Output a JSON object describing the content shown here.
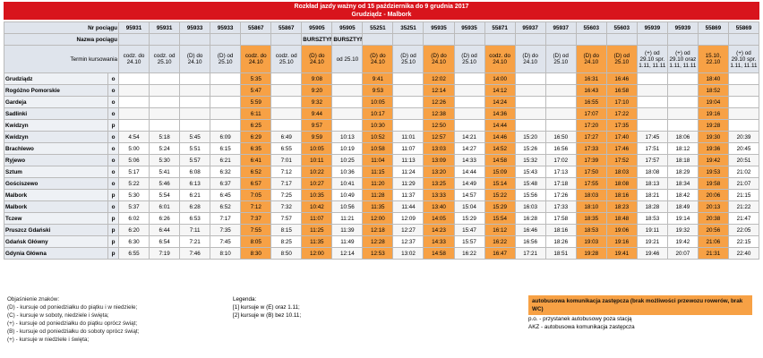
{
  "header": {
    "title": "Rozkład jazdy ważny od 15 października do 9 grudnia 2017",
    "subtitle": "Grudziądz - Malbork"
  },
  "labels": {
    "number": "Nr pociągu",
    "name": "Nazwa pociągu",
    "days": "Termin kursowania"
  },
  "bus_color": "#f7a145",
  "trains": [
    {
      "number": "95931",
      "name": null,
      "days": "codz. do 24.10",
      "bus": false
    },
    {
      "number": "95931",
      "name": null,
      "days": "codz. od 25.10",
      "bus": false
    },
    {
      "number": "95933",
      "name": null,
      "days": "(D) do 24.10",
      "bus": false
    },
    {
      "number": "95933",
      "name": null,
      "days": "(D) od 25.10",
      "bus": false
    },
    {
      "number": "55867",
      "name": null,
      "days": "codz. do 24.10",
      "bus": true
    },
    {
      "number": "55867",
      "name": null,
      "days": "codz. od 25.10",
      "bus": false
    },
    {
      "number": "95905",
      "name": "BURSZTYN",
      "days": "(D) do 24.10",
      "bus": true
    },
    {
      "number": "95905",
      "name": "BURSZTYN",
      "days": "od 25.10",
      "bus": false
    },
    {
      "number": "55251",
      "name": null,
      "days": "(D) do 24.10",
      "bus": true
    },
    {
      "number": "35251",
      "name": null,
      "days": "(D) od 25.10",
      "bus": false
    },
    {
      "number": "95935",
      "name": null,
      "days": "(D) do 24.10",
      "bus": true
    },
    {
      "number": "95935",
      "name": null,
      "days": "(D) od 25.10",
      "bus": false
    },
    {
      "number": "55871",
      "name": null,
      "days": "codz. do 24.10",
      "bus": true
    },
    {
      "number": "95937",
      "name": null,
      "days": "(D) do 24.10",
      "bus": false
    },
    {
      "number": "95937",
      "name": null,
      "days": "(D) od 25.10",
      "bus": false
    },
    {
      "number": "55603",
      "name": null,
      "days": "(D) do 24.10",
      "bus": true
    },
    {
      "number": "55603",
      "name": null,
      "days": "(D) od 25.10",
      "bus": true
    },
    {
      "number": "95939",
      "name": null,
      "days": "(+) od 29.10 spr. 1.11, 11.11",
      "bus": false
    },
    {
      "number": "95939",
      "name": null,
      "days": "(+) od 29.10 oraz 1.11, 11.11",
      "bus": false
    },
    {
      "number": "55869",
      "name": null,
      "days": "15.10, 22.10",
      "bus": true
    },
    {
      "number": "55869",
      "name": null,
      "days": "(+) od 29.10 spr. 1.11, 11.11",
      "bus": false
    }
  ],
  "rows": [
    {
      "station": "Grudziądz",
      "type": "o",
      "times": [
        null,
        null,
        null,
        null,
        "5:35",
        null,
        "9:08",
        null,
        "9:41",
        null,
        "12:02",
        null,
        "14:00",
        null,
        null,
        "16:31",
        "16:46",
        null,
        null,
        "18:40",
        null
      ]
    },
    {
      "station": "Rogóżno Pomorskie",
      "type": "o",
      "times": [
        null,
        null,
        null,
        null,
        "5:47",
        null,
        "9:20",
        null,
        "9:53",
        null,
        "12:14",
        null,
        "14:12",
        null,
        null,
        "16:43",
        "16:58",
        null,
        null,
        "18:52",
        null
      ]
    },
    {
      "station": "Gardeja",
      "type": "o",
      "times": [
        null,
        null,
        null,
        null,
        "5:59",
        null,
        "9:32",
        null,
        "10:05",
        null,
        "12:26",
        null,
        "14:24",
        null,
        null,
        "16:55",
        "17:10",
        null,
        null,
        "19:04",
        null
      ]
    },
    {
      "station": "Sadlinki",
      "type": "o",
      "times": [
        null,
        null,
        null,
        null,
        "6:11",
        null,
        "9:44",
        null,
        "10:17",
        null,
        "12:38",
        null,
        "14:36",
        null,
        null,
        "17:07",
        "17:22",
        null,
        null,
        "19:16",
        null
      ]
    },
    {
      "station": "Kwidzyn",
      "type": "p",
      "times": [
        null,
        null,
        null,
        null,
        "6:25",
        null,
        "9:57",
        null,
        "10:30",
        null,
        "12:50",
        null,
        "14:44",
        null,
        null,
        "17:20",
        "17:35",
        null,
        null,
        "19:28",
        null
      ]
    },
    {
      "station": "Kwidzyn",
      "type": "o",
      "times": [
        "4:54",
        "5:18",
        "5:45",
        "6:09",
        "6:29",
        "6:49",
        "9:59",
        "10:13",
        "10:52",
        "11:01",
        "12:57",
        "14:21",
        "14:46",
        "15:20",
        "16:50",
        "17:27",
        "17:40",
        "17:45",
        "18:06",
        "19:30",
        "20:39"
      ]
    },
    {
      "station": "Brachlewo",
      "type": "o",
      "times": [
        "5:00",
        "5:24",
        "5:51",
        "6:15",
        "6:35",
        "6:55",
        "10:05",
        "10:19",
        "10:58",
        "11:07",
        "13:03",
        "14:27",
        "14:52",
        "15:26",
        "16:56",
        "17:33",
        "17:46",
        "17:51",
        "18:12",
        "19:36",
        "20:45"
      ]
    },
    {
      "station": "Ryjewo",
      "type": "o",
      "times": [
        "5:06",
        "5:30",
        "5:57",
        "6:21",
        "6:41",
        "7:01",
        "10:11",
        "10:25",
        "11:04",
        "11:13",
        "13:09",
        "14:33",
        "14:58",
        "15:32",
        "17:02",
        "17:39",
        "17:52",
        "17:57",
        "18:18",
        "19:42",
        "20:51"
      ]
    },
    {
      "station": "Sztum",
      "type": "o",
      "times": [
        "5:17",
        "5:41",
        "6:08",
        "6:32",
        "6:52",
        "7:12",
        "10:22",
        "10:36",
        "11:15",
        "11:24",
        "13:20",
        "14:44",
        "15:09",
        "15:43",
        "17:13",
        "17:50",
        "18:03",
        "18:08",
        "18:29",
        "19:53",
        "21:02"
      ]
    },
    {
      "station": "Gościszewo",
      "type": "o",
      "times": [
        "5:22",
        "5:46",
        "6:13",
        "6:37",
        "6:57",
        "7:17",
        "10:27",
        "10:41",
        "11:20",
        "11:29",
        "13:25",
        "14:49",
        "15:14",
        "15:48",
        "17:18",
        "17:55",
        "18:08",
        "18:13",
        "18:34",
        "19:58",
        "21:07"
      ]
    },
    {
      "station": "Malbork",
      "type": "p",
      "times": [
        "5:30",
        "5:54",
        "6:21",
        "6:45",
        "7:05",
        "7:25",
        "10:35",
        "10:49",
        "11:28",
        "11:37",
        "13:33",
        "14:57",
        "15:22",
        "15:56",
        "17:26",
        "18:03",
        "18:16",
        "18:21",
        "18:42",
        "20:06",
        "21:15"
      ]
    },
    {
      "station": "Malbork",
      "type": "o",
      "times": [
        "5:37",
        "6:01",
        "6:28",
        "6:52",
        "7:12",
        "7:32",
        "10:42",
        "10:56",
        "11:35",
        "11:44",
        "13:40",
        "15:04",
        "15:29",
        "16:03",
        "17:33",
        "18:10",
        "18:23",
        "18:28",
        "18:49",
        "20:13",
        "21:22"
      ]
    },
    {
      "station": "Tczew",
      "type": "p",
      "times": [
        "6:02",
        "6:26",
        "6:53",
        "7:17",
        "7:37",
        "7:57",
        "11:07",
        "11:21",
        "12:00",
        "12:09",
        "14:05",
        "15:29",
        "15:54",
        "16:28",
        "17:58",
        "18:35",
        "18:48",
        "18:53",
        "19:14",
        "20:38",
        "21:47"
      ]
    },
    {
      "station": "Pruszcz Gdański",
      "type": "p",
      "times": [
        "6:20",
        "6:44",
        "7:11",
        "7:35",
        "7:55",
        "8:15",
        "11:25",
        "11:39",
        "12:18",
        "12:27",
        "14:23",
        "15:47",
        "16:12",
        "16:46",
        "18:16",
        "18:53",
        "19:06",
        "19:11",
        "19:32",
        "20:56",
        "22:05"
      ]
    },
    {
      "station": "Gdańsk Główny",
      "type": "p",
      "times": [
        "6:30",
        "6:54",
        "7:21",
        "7:45",
        "8:05",
        "8:25",
        "11:35",
        "11:49",
        "12:28",
        "12:37",
        "14:33",
        "15:57",
        "16:22",
        "16:56",
        "18:26",
        "19:03",
        "19:16",
        "19:21",
        "19:42",
        "21:06",
        "22:15"
      ]
    },
    {
      "station": "Gdynia Główna",
      "type": "p",
      "times": [
        "6:55",
        "7:19",
        "7:46",
        "8:10",
        "8:30",
        "8:50",
        "12:00",
        "12:14",
        "12:53",
        "13:02",
        "14:58",
        "16:22",
        "16:47",
        "17:21",
        "18:51",
        "19:28",
        "19:41",
        "19:46",
        "20:07",
        "21:31",
        "22:40"
      ]
    }
  ],
  "legend": {
    "heading": "Objaśnienie znaków:",
    "items": [
      "(D) - kursuje od poniedziałku do piątku i w niedziele;",
      "(C) - kursuje w soboty, niedziele i święta;",
      "(+) - kursuje od poniedziałku do piątku oprócz świąt;",
      "(B) - kursuje od poniedziałku do soboty oprócz świąt;",
      "(+) - kursuje w niedziele i święta;"
    ],
    "notes_heading": "Legenda:",
    "notes": [
      "[1] kursuje w (E) oraz 1.11;",
      "[2] kursuje w (B) bez 10.11;"
    ],
    "bus_note": "autobusowa komunikacja zastępcza (brak możliwości przewozu rowerów, brak WC)",
    "extra": [
      "p.o. - przystanek autobusowy poza stacją",
      "AKZ - autobusowa komunikacja zastępcza"
    ]
  }
}
